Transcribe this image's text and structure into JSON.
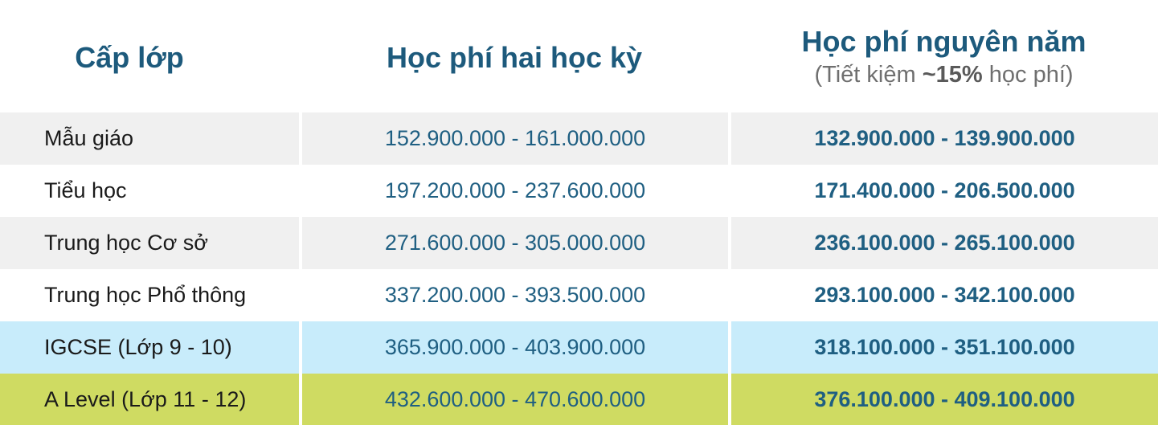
{
  "header": {
    "col1": "Cấp lớp",
    "col2": "Học phí hai học kỳ",
    "col3": "Học phí nguyên năm",
    "col3_sub_prefix": "(Tiết kiệm ",
    "col3_sub_bold": "~15%",
    "col3_sub_suffix": " học phí)"
  },
  "rows": [
    {
      "level": "Mẫu giáo",
      "two_semesters": "152.900.000 - 161.000.000",
      "full_year": "132.900.000 - 139.900.000"
    },
    {
      "level": "Tiểu học",
      "two_semesters": "197.200.000 - 237.600.000",
      "full_year": "171.400.000 - 206.500.000"
    },
    {
      "level": "Trung học Cơ sở",
      "two_semesters": "271.600.000 - 305.000.000",
      "full_year": "236.100.000 - 265.100.000"
    },
    {
      "level": "Trung học Phổ thông",
      "two_semesters": "337.200.000 - 393.500.000",
      "full_year": "293.100.000 -  342.100.000"
    },
    {
      "level": "IGCSE (Lớp 9 - 10)",
      "two_semesters": "365.900.000 -  403.900.000",
      "full_year": "318.100.000 -  351.100.000"
    },
    {
      "level": "A Level (Lớp 11 - 12)",
      "two_semesters": "432.600.000 -  470.600.000",
      "full_year": "376.100.000 -  409.100.000"
    }
  ],
  "colors": {
    "header_text": "#1d5a7c",
    "value_text": "#1f5f82",
    "row_grey": "#f0f0f0",
    "row_blue": "#c8ecfb",
    "row_green": "#cfdb62"
  }
}
